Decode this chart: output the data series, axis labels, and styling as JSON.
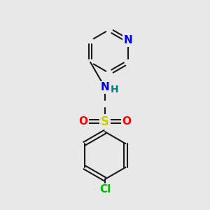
{
  "bg_color": "#e8e8e8",
  "bond_color": "#1a1a1a",
  "bond_width": 1.5,
  "atom_colors": {
    "N": "#0000ee",
    "O": "#ff0000",
    "S": "#cccc00",
    "Cl": "#00bb00",
    "H": "#008080",
    "C": "#1a1a1a"
  },
  "font_size": 10,
  "fig_size": [
    3.0,
    3.0
  ],
  "dpi": 100
}
